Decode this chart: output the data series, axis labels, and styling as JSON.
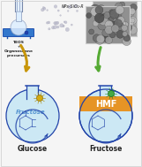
{
  "background_color": "#f5f5f5",
  "top_left_label": "TEOS\n+\nOrganosilane\nprecursors",
  "top_right_label": "NPs-SiO₂-R",
  "bottom_left_label": "Glucose",
  "bottom_right_label": "Fructose",
  "hmf_label": "HMF",
  "fructose_flask_label": "Fructose",
  "flask_bg_left": "#cce8f4",
  "flask_bg_right": "#cce8f4",
  "hmf_band_color": "#e8901a",
  "flask_border_color": "#2244aa",
  "arrow_color_gold": "#c8960a",
  "arrow_color_green": "#55aa33",
  "nanoparticle_color_left": "#d4aa10",
  "nanoparticle_color_right": "#44aa44",
  "text_color": "#222222",
  "figsize": [
    1.61,
    1.89
  ],
  "dpi": 100
}
